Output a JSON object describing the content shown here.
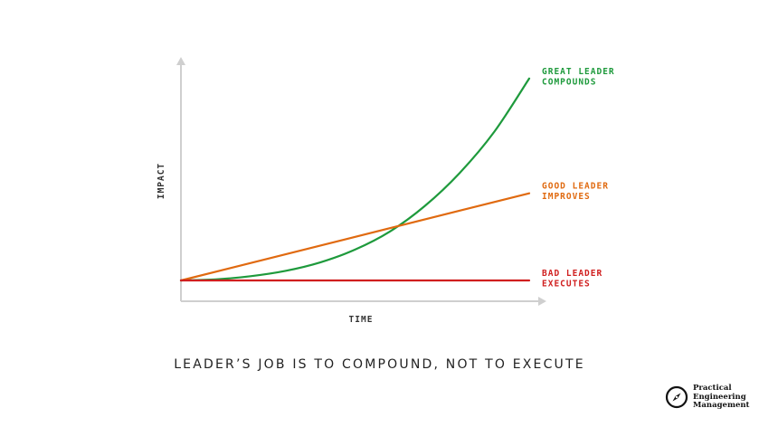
{
  "chart_data": {
    "type": "line",
    "title": "",
    "xlabel": "TIME",
    "ylabel": "IMPACT",
    "xlim": [
      0,
      10
    ],
    "ylim": [
      0,
      10
    ],
    "series": [
      {
        "label_lines": [
          "GREAT LEADER",
          "COMPOUNDS"
        ],
        "color": "#1e9a3c",
        "x": [
          0,
          1,
          2,
          3,
          4,
          5,
          6,
          7,
          8,
          9,
          10
        ],
        "y": [
          0,
          0.05,
          0.2,
          0.45,
          0.85,
          1.45,
          2.3,
          3.5,
          5.05,
          7.0,
          9.5
        ]
      },
      {
        "label_lines": [
          "GOOD LEADER",
          "IMPROVES"
        ],
        "color": "#e06a10",
        "x": [
          0,
          10
        ],
        "y": [
          0,
          4.1
        ]
      },
      {
        "label_lines": [
          "BAD LEADER",
          "EXECUTES"
        ],
        "color": "#d01f1f",
        "x": [
          0,
          10
        ],
        "y": [
          0,
          0
        ]
      }
    ]
  },
  "caption": "LEADER’S JOB IS TO COMPOUND, NOT TO EXECUTE",
  "logo": {
    "lines": [
      "Practical",
      "Engineering",
      "Management"
    ],
    "icon": "compass-icon"
  }
}
